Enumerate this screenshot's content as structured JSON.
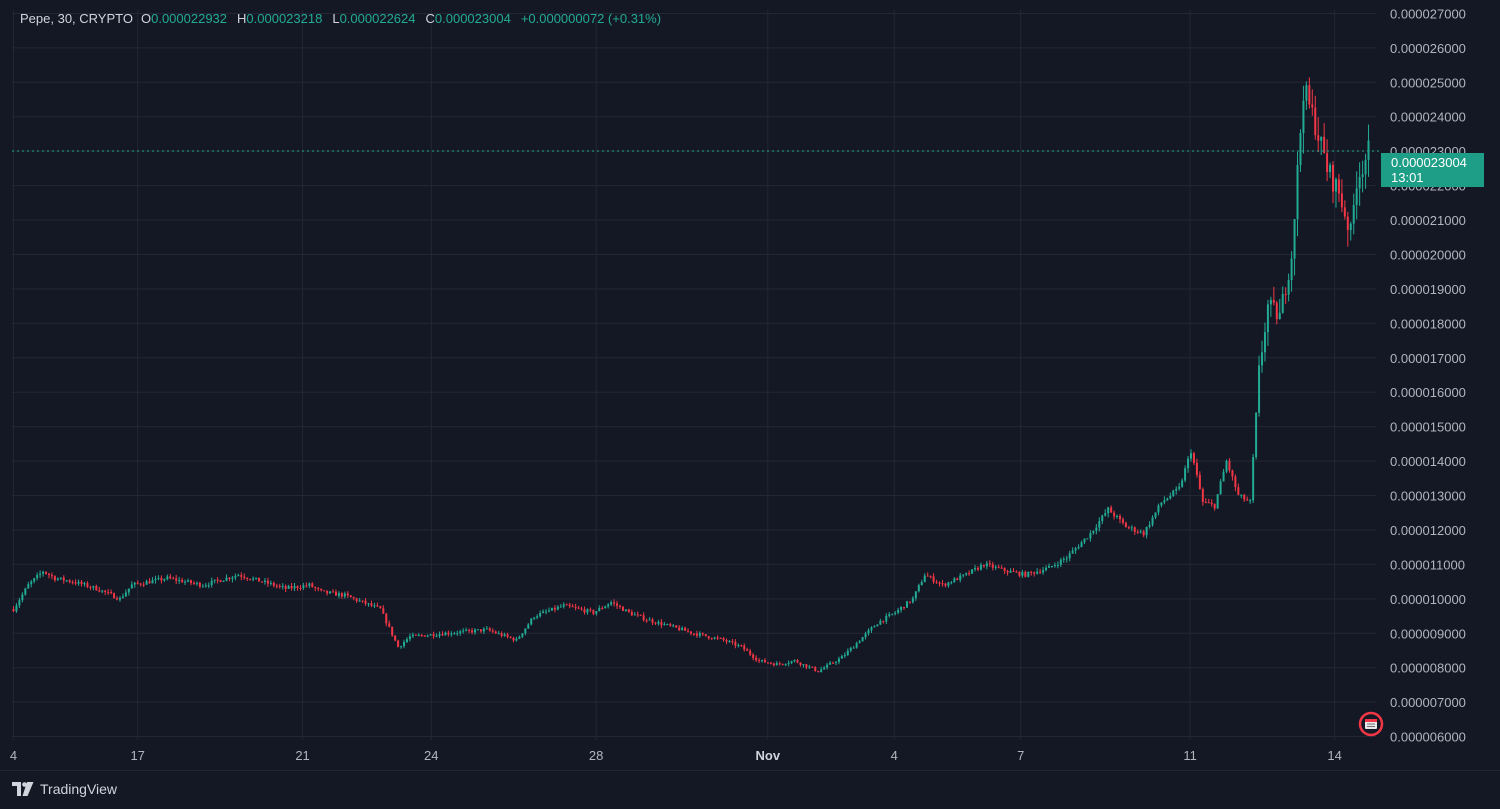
{
  "legend": {
    "symbol": "Pepe, 30, CRYPTO",
    "open_label": "O",
    "open": "0.000022932",
    "high_label": "H",
    "high": "0.000023218",
    "low_label": "L",
    "low": "0.000022624",
    "close_label": "C",
    "close": "0.000023004",
    "change": "+0.000000072 (+0.31%)"
  },
  "price_label": {
    "price": "0.000023004",
    "countdown": "13:01"
  },
  "footer": {
    "brand": "TradingView"
  },
  "colors": {
    "up": "#22ab94",
    "down": "#f23645",
    "background": "#141824",
    "grid": "#232735",
    "price_line": "#22ab94"
  },
  "chart_data": {
    "type": "candlestick",
    "interval": "30",
    "ylim": [
      5.9e-06,
      2.71e-05
    ],
    "y_ticks": [
      "0.000027000",
      "0.000026000",
      "0.000025000",
      "0.000024000",
      "0.000023000",
      "0.000022000",
      "0.000021000",
      "0.000020000",
      "0.000019000",
      "0.000018000",
      "0.000017000",
      "0.000016000",
      "0.000015000",
      "0.000014000",
      "0.000013000",
      "0.000012000",
      "0.000011000",
      "0.000010000",
      "0.000009000",
      "0.000008000",
      "0.000007000",
      "0.000006000"
    ],
    "x_ticks": [
      "4",
      "17",
      "21",
      "24",
      "28",
      "Nov",
      "4",
      "7",
      "11",
      "14"
    ],
    "current_price": 2.3004e-05,
    "price_path": [
      [
        0,
        9.7e-06
      ],
      [
        5,
        1.04e-05
      ],
      [
        10,
        1.08e-05
      ],
      [
        14,
        1.06e-05
      ],
      [
        20,
        1.05e-05
      ],
      [
        28,
        1.03e-05
      ],
      [
        36,
        1e-05
      ],
      [
        40,
        1.04e-05
      ],
      [
        52,
        1.06e-05
      ],
      [
        64,
        1.04e-05
      ],
      [
        76,
        1.07e-05
      ],
      [
        84,
        1.05e-05
      ],
      [
        92,
        1.03e-05
      ],
      [
        100,
        1.04e-05
      ],
      [
        104,
        1.02e-05
      ],
      [
        112,
        1.01e-05
      ],
      [
        118,
        9.9e-06
      ],
      [
        124,
        9.7e-06
      ],
      [
        130,
        8.6e-06
      ],
      [
        134,
        8.9e-06
      ],
      [
        146,
        9e-06
      ],
      [
        160,
        9.1e-06
      ],
      [
        170,
        8.8e-06
      ],
      [
        176,
        9.5e-06
      ],
      [
        186,
        9.8e-06
      ],
      [
        196,
        9.6e-06
      ],
      [
        202,
        9.9e-06
      ],
      [
        208,
        9.6e-06
      ],
      [
        214,
        9.4e-06
      ],
      [
        222,
        9.2e-06
      ],
      [
        230,
        9e-06
      ],
      [
        240,
        8.8e-06
      ],
      [
        246,
        8.6e-06
      ],
      [
        252,
        8.2e-06
      ],
      [
        258,
        8.1e-06
      ],
      [
        264,
        8.2e-06
      ],
      [
        272,
        7.9e-06
      ],
      [
        280,
        8.3e-06
      ],
      [
        286,
        8.8e-06
      ],
      [
        292,
        9.3e-06
      ],
      [
        298,
        9.6e-06
      ],
      [
        304,
        1e-05
      ],
      [
        308,
        1.07e-05
      ],
      [
        314,
        1.04e-05
      ],
      [
        322,
        1.07e-05
      ],
      [
        328,
        1.1e-05
      ],
      [
        336,
        1.08e-05
      ],
      [
        342,
        1.07e-05
      ],
      [
        350,
        1.09e-05
      ],
      [
        356,
        1.12e-05
      ],
      [
        364,
        1.19e-05
      ],
      [
        370,
        1.26e-05
      ],
      [
        376,
        1.21e-05
      ],
      [
        382,
        1.19e-05
      ],
      [
        388,
        1.28e-05
      ],
      [
        394,
        1.32e-05
      ],
      [
        398,
        1.43e-05
      ],
      [
        402,
        1.28e-05
      ],
      [
        406,
        1.27e-05
      ],
      [
        410,
        1.4e-05
      ],
      [
        414,
        1.3e-05
      ],
      [
        418,
        1.28e-05
      ],
      [
        421,
        1.66e-05
      ],
      [
        424,
        1.85e-05
      ],
      [
        428,
        1.82e-05
      ],
      [
        432,
        2e-05
      ],
      [
        436,
        2.48e-05
      ],
      [
        440,
        2.38e-05
      ],
      [
        444,
        2.25e-05
      ],
      [
        448,
        2.18e-05
      ],
      [
        452,
        2.06e-05
      ],
      [
        454,
        2.22e-05
      ],
      [
        458,
        2.3e-05
      ]
    ]
  }
}
